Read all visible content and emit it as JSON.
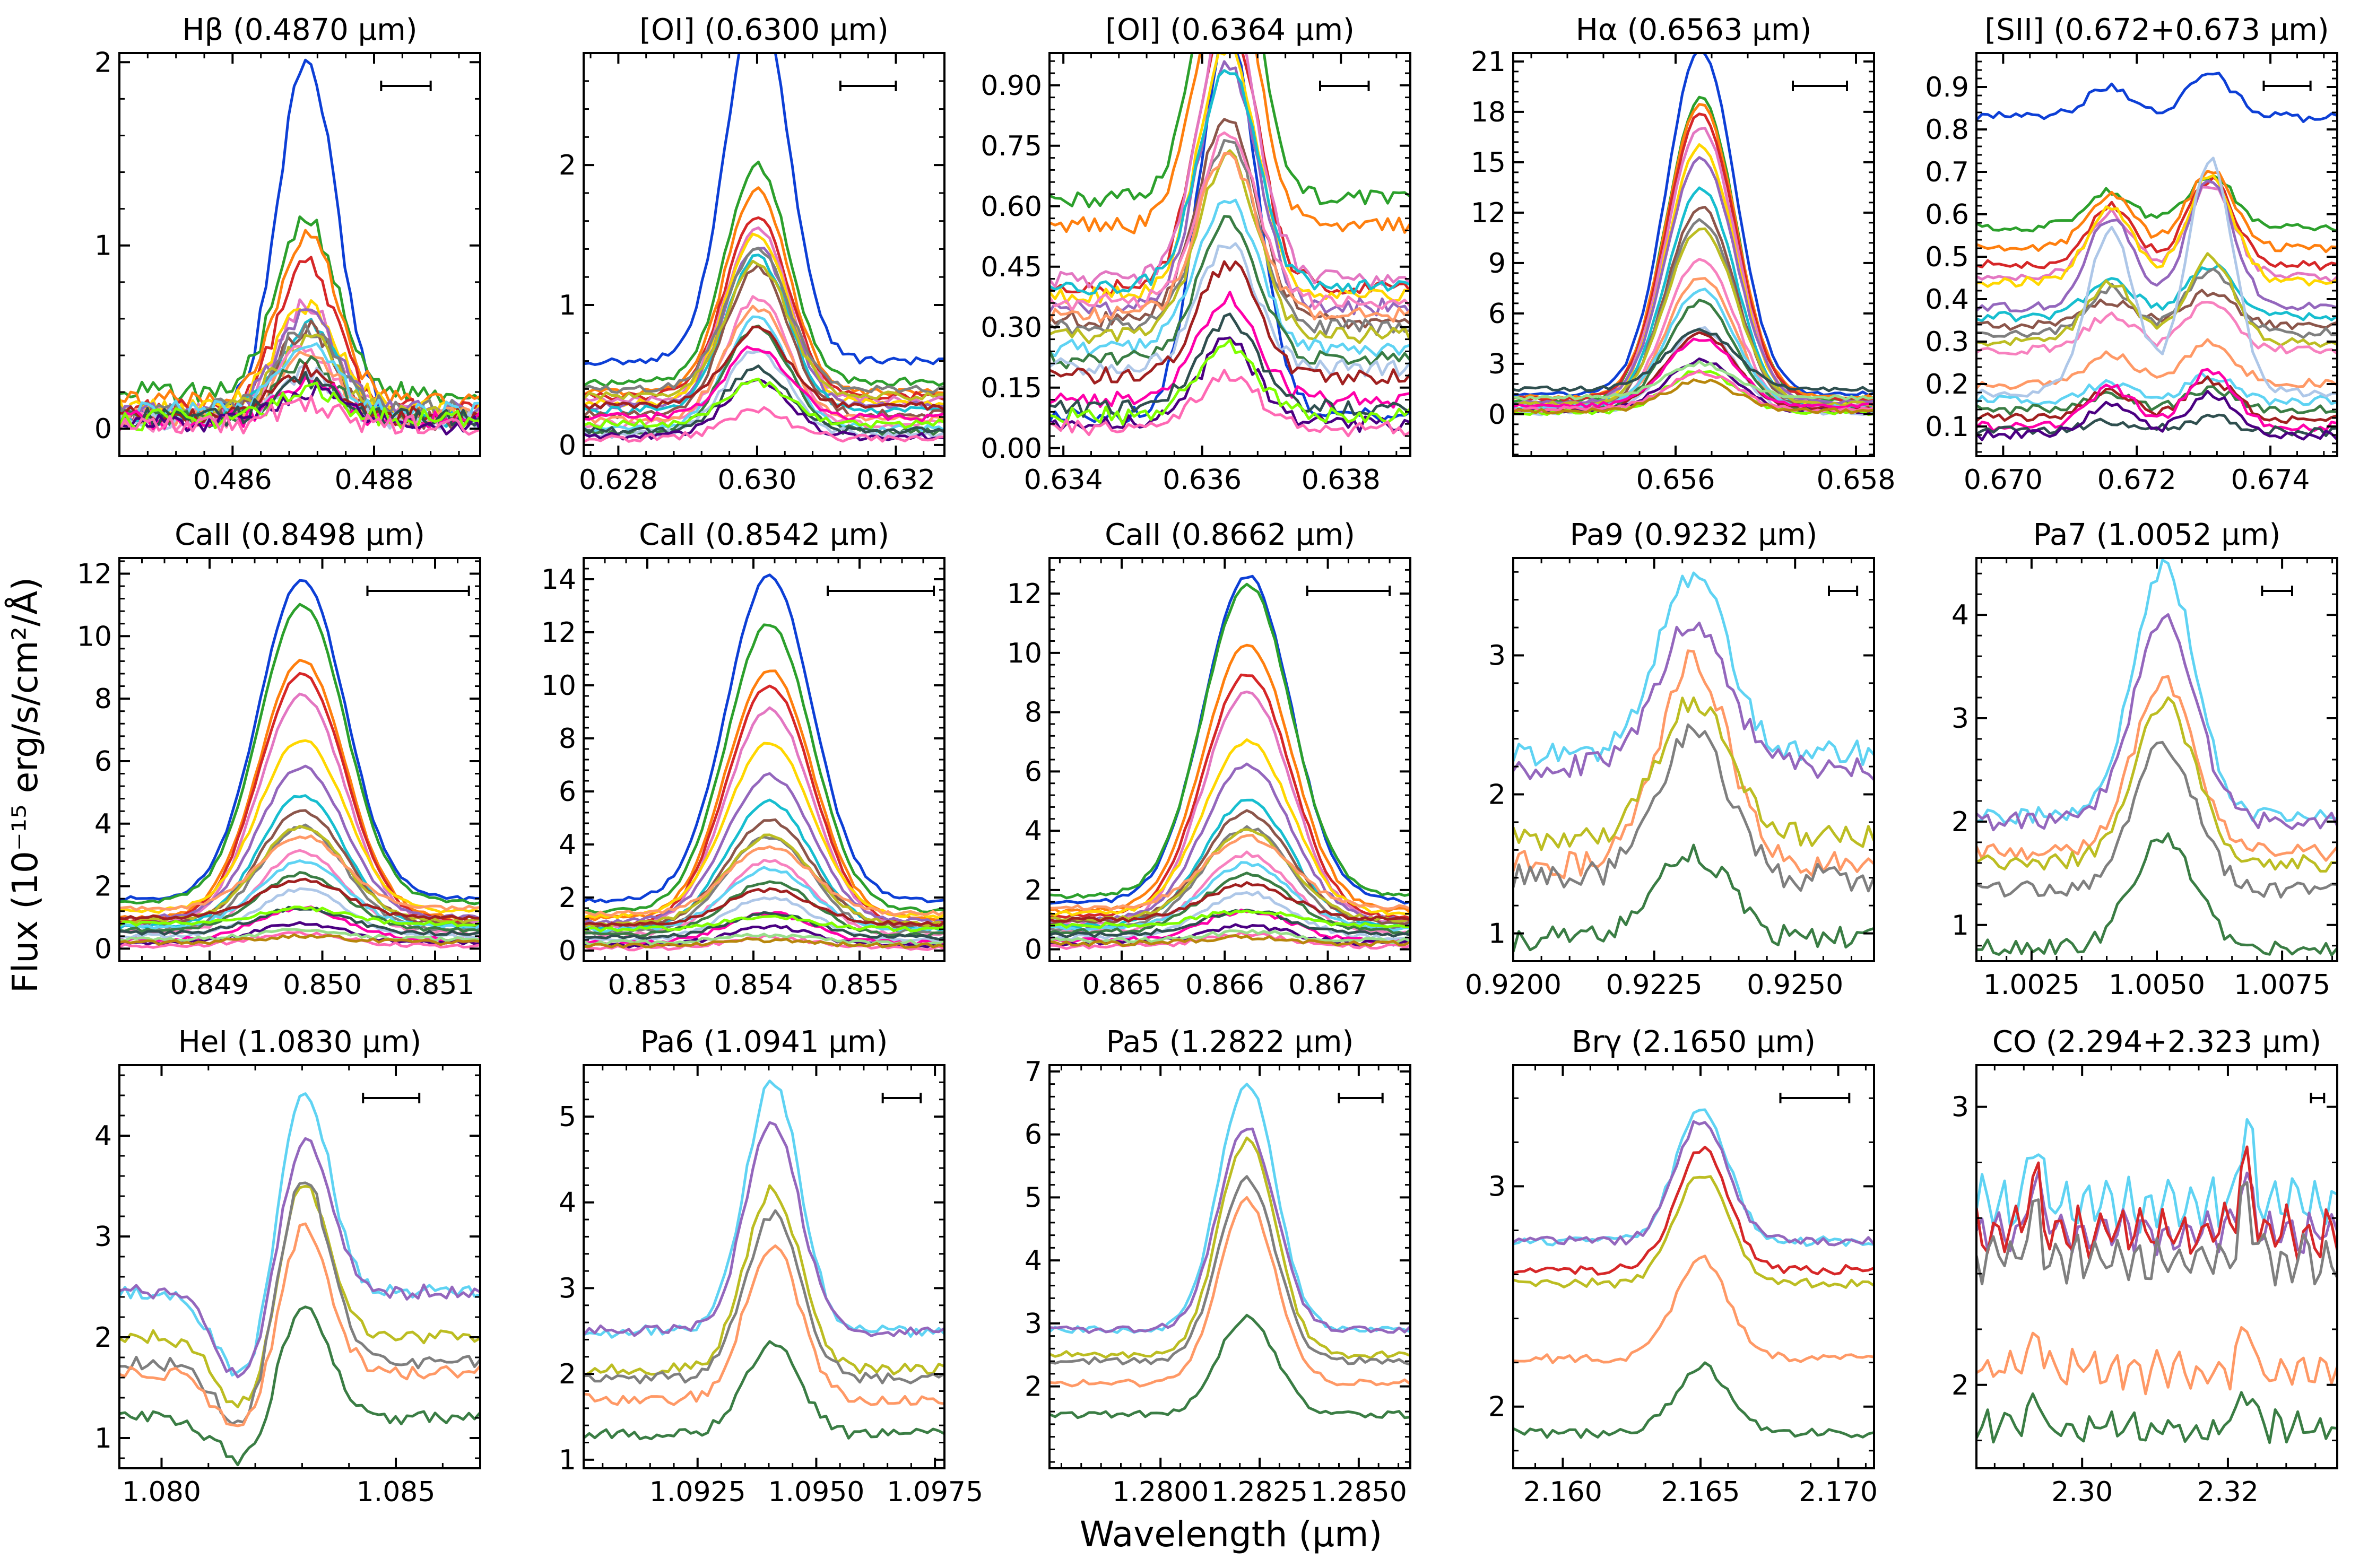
{
  "figure": {
    "ylabel": "Flux (10⁻¹⁵ erg/s/cm²/Å)",
    "xlabel": "Wavelength (μm)"
  },
  "palette": [
    "#0d3fd6",
    "#2ca02c",
    "#ff7f0e",
    "#d62728",
    "#e377c2",
    "#ffd700",
    "#9467bd",
    "#17becf",
    "#8c564b",
    "#7f7f7f",
    "#bcbd22",
    "#f781bf",
    "#ff9966",
    "#5fd3f3",
    "#3a7d44",
    "#aec7e8",
    "#a02020",
    "#ff00aa",
    "#2f4f4f",
    "#4b0082",
    "#7fff00",
    "#ff69b4",
    "#98df8a",
    "#b8860b",
    "#8888ff",
    "#cc3300",
    "#33aa77",
    "#ffaa00",
    "#663399",
    "#00a0a0"
  ],
  "chart_data": [
    {
      "type": "line",
      "title": "Hβ (0.4870 μm)",
      "xlim": [
        0.4844,
        0.4895
      ],
      "ylim": [
        -0.15,
        2.05
      ],
      "xticks": [
        0.486,
        0.488
      ],
      "xticklabels": [
        "0.486",
        "0.488"
      ],
      "yticks": [
        0,
        1,
        2
      ],
      "yticklabels": [
        "0",
        "1",
        "2"
      ],
      "center": 0.48705,
      "sigma": 0.00042,
      "n_series": 22,
      "peaks": [
        1.95,
        0.93,
        0.92,
        0.8,
        0.6,
        0.55,
        0.52,
        0.5,
        0.5,
        0.45,
        0.42,
        0.4,
        0.35,
        0.33,
        0.3,
        0.28,
        0.25,
        0.22,
        0.2,
        0.18,
        0.15,
        0.12
      ],
      "bases": [
        0.05,
        0.2,
        0.15,
        0.1,
        0.08,
        0.12,
        0.1,
        0.06,
        0.05,
        0.1,
        0.08,
        0.04,
        0.06,
        0.1,
        0.05,
        0.03,
        0.07,
        0.04,
        0.06,
        0.03,
        0.05,
        0.02
      ],
      "noise": 0.04,
      "sel": null,
      "scalebar": [
        0.4881,
        0.4888
      ]
    },
    {
      "type": "line",
      "title": "[OI] (0.6300 μm)",
      "xlim": [
        0.6275,
        0.6327
      ],
      "ylim": [
        -0.08,
        2.8
      ],
      "xticks": [
        0.628,
        0.63,
        0.632
      ],
      "xticklabels": [
        "0.628",
        "0.630",
        "0.632"
      ],
      "yticks": [
        0,
        1,
        2
      ],
      "yticklabels": [
        "0",
        "1",
        "2"
      ],
      "center": 0.63,
      "sigma": 0.00045,
      "n_series": 22,
      "peaks": [
        2.6,
        1.55,
        1.45,
        1.3,
        1.25,
        1.2,
        1.15,
        1.1,
        1.05,
        1.0,
        0.95,
        0.9,
        0.8,
        0.78,
        0.75,
        0.6,
        0.55,
        0.5,
        0.45,
        0.4,
        0.3,
        0.2
      ],
      "bases": [
        0.6,
        0.45,
        0.38,
        0.35,
        0.32,
        0.3,
        0.28,
        0.25,
        0.22,
        0.4,
        0.35,
        0.15,
        0.18,
        0.12,
        0.1,
        0.08,
        0.28,
        0.2,
        0.1,
        0.06,
        0.15,
        0.05
      ],
      "noise": 0.02,
      "sel": null,
      "scalebar": [
        0.6312,
        0.632
      ]
    },
    {
      "type": "line",
      "title": "[OI] (0.6364 μm)",
      "xlim": [
        0.6338,
        0.639
      ],
      "ylim": [
        -0.02,
        0.98
      ],
      "xticks": [
        0.634,
        0.636,
        0.638
      ],
      "xticklabels": [
        "0.634",
        "0.636",
        "0.638"
      ],
      "yticks": [
        0,
        0.15,
        0.3,
        0.45,
        0.6,
        0.75,
        0.9
      ],
      "yticklabels": [
        "0.00",
        "0.15",
        "0.30",
        "0.45",
        "0.60",
        "0.75",
        "0.90"
      ],
      "center": 0.63637,
      "sigma": 0.00042,
      "n_series": 22,
      "peaks": [
        0.95,
        0.75,
        0.7,
        0.68,
        0.66,
        0.62,
        0.6,
        0.55,
        0.5,
        0.46,
        0.45,
        0.42,
        0.4,
        0.38,
        0.35,
        0.3,
        0.28,
        0.25,
        0.22,
        0.2,
        0.18,
        0.13
      ],
      "bases": [
        0.08,
        0.62,
        0.55,
        0.4,
        0.42,
        0.38,
        0.35,
        0.4,
        0.32,
        0.3,
        0.28,
        0.36,
        0.33,
        0.25,
        0.22,
        0.2,
        0.18,
        0.12,
        0.1,
        0.06,
        0.08,
        0.05
      ],
      "noise": 0.015,
      "sel": null,
      "scalebar": [
        0.6377,
        0.6384
      ]
    },
    {
      "type": "line",
      "title": "Hα (0.6563 μm)",
      "xlim": [
        0.6542,
        0.6582
      ],
      "ylim": [
        -2.5,
        21.5
      ],
      "xticks": [
        0.656,
        0.658
      ],
      "xticklabels": [
        "0.656",
        "0.658"
      ],
      "yticks": [
        0,
        3,
        6,
        9,
        12,
        15,
        18,
        21
      ],
      "yticklabels": [
        "0",
        "3",
        "6",
        "9",
        "12",
        "15",
        "18",
        "21"
      ],
      "center": 0.65628,
      "sigma": 0.00038,
      "n_series": 24,
      "peaks": [
        20.5,
        18,
        17.5,
        17,
        16.5,
        15.5,
        14.5,
        13,
        12,
        11,
        10.5,
        9,
        8,
        7,
        6.5,
        5,
        4.5,
        4,
        3.5,
        3,
        2.5,
        2.2,
        2,
        1.8
      ],
      "bases": [
        1.2,
        0.8,
        1.0,
        0.9,
        0.6,
        0.5,
        0.7,
        0.4,
        0.3,
        0.5,
        0.6,
        0.3,
        0.2,
        0.4,
        0.2,
        0.1,
        0.3,
        0.5,
        1.5,
        0.2,
        0.1,
        0.3,
        1.0,
        0.2
      ],
      "noise": 0.1,
      "sel": null,
      "scalebar": [
        0.6573,
        0.6579
      ]
    },
    {
      "type": "line",
      "title": "[SII] (0.672+0.673 μm)",
      "xlim": [
        0.6696,
        0.675
      ],
      "ylim": [
        0.03,
        0.98
      ],
      "xticks": [
        0.67,
        0.672,
        0.674
      ],
      "xticklabels": [
        "0.670",
        "0.672",
        "0.674"
      ],
      "yticks": [
        0.1,
        0.2,
        0.3,
        0.4,
        0.5,
        0.6,
        0.7,
        0.8,
        0.9
      ],
      "yticklabels": [
        "0.1",
        "0.2",
        "0.3",
        "0.4",
        "0.5",
        "0.6",
        "0.7",
        "0.8",
        "0.9"
      ],
      "centers": [
        0.67161,
        0.6731
      ],
      "sigma": 0.00035,
      "ratio": 0.7,
      "n_series": 20,
      "peaks": [
        0.1,
        0.12,
        0.18,
        0.2,
        0.22,
        0.25,
        0.3,
        0.12,
        0.08,
        0.15,
        0.2,
        0.12,
        0.1,
        0.06,
        0.05,
        0.55,
        0.09,
        0.13,
        0.03,
        0.1
      ],
      "bases": [
        0.83,
        0.57,
        0.52,
        0.48,
        0.45,
        0.44,
        0.38,
        0.36,
        0.34,
        0.32,
        0.3,
        0.28,
        0.2,
        0.16,
        0.14,
        0.18,
        0.12,
        0.1,
        0.09,
        0.08
      ],
      "noise": 0.008,
      "sel": null,
      "scalebar": [
        0.6739,
        0.6746
      ]
    },
    {
      "type": "line",
      "title": "CaII (0.8498 μm)",
      "xlim": [
        0.8482,
        0.8514
      ],
      "ylim": [
        -0.4,
        12.5
      ],
      "xticks": [
        0.849,
        0.85,
        0.851
      ],
      "xticklabels": [
        "0.849",
        "0.850",
        "0.851"
      ],
      "yticks": [
        0,
        2,
        4,
        6,
        8,
        10,
        12
      ],
      "yticklabels": [
        "0",
        "2",
        "4",
        "6",
        "8",
        "10",
        "12"
      ],
      "center": 0.84982,
      "sigma": 0.00038,
      "n_series": 24,
      "peaks": [
        10.2,
        9.5,
        8.2,
        7.9,
        7.3,
        5.5,
        4.8,
        4.2,
        3.6,
        3.3,
        3,
        2.6,
        2.3,
        2.1,
        1.8,
        1.5,
        1.2,
        1.0,
        0.8,
        0.6,
        0.5,
        0.4,
        0.3,
        0.2
      ],
      "bases": [
        1.6,
        1.5,
        1.0,
        0.9,
        0.8,
        1.2,
        1.0,
        0.7,
        0.8,
        0.6,
        0.9,
        0.5,
        1.3,
        0.7,
        0.6,
        0.4,
        1.0,
        0.3,
        0.5,
        0.2,
        0.8,
        0.1,
        0.3,
        0.2
      ],
      "noise": 0.05,
      "sel": null,
      "scalebar": [
        0.8504,
        0.8513
      ]
    },
    {
      "type": "line",
      "title": "CaII (0.8542 μm)",
      "xlim": [
        0.8524,
        0.8558
      ],
      "ylim": [
        -0.4,
        14.8
      ],
      "xticks": [
        0.853,
        0.854,
        0.855
      ],
      "xticklabels": [
        "0.853",
        "0.854",
        "0.855"
      ],
      "yticks": [
        0,
        2,
        4,
        6,
        8,
        10,
        12,
        14
      ],
      "yticklabels": [
        "0",
        "2",
        "4",
        "6",
        "8",
        "10",
        "12",
        "14"
      ],
      "center": 0.85415,
      "sigma": 0.0004,
      "n_series": 24,
      "peaks": [
        12.2,
        10.8,
        9.4,
        9,
        8.2,
        6.5,
        5.5,
        4.8,
        4,
        3.6,
        3.3,
        2.8,
        2.5,
        2.3,
        2,
        1.6,
        1.3,
        1.1,
        0.9,
        0.7,
        0.5,
        0.4,
        0.3,
        0.2
      ],
      "bases": [
        1.9,
        1.5,
        1.2,
        1.0,
        0.9,
        1.3,
        1.1,
        0.8,
        0.9,
        0.7,
        1.0,
        0.6,
        1.4,
        0.8,
        0.6,
        0.4,
        1.0,
        0.3,
        0.5,
        0.2,
        0.8,
        0.1,
        0.3,
        0.2
      ],
      "noise": 0.06,
      "sel": null,
      "scalebar": [
        0.8547,
        0.8557
      ]
    },
    {
      "type": "line",
      "title": "CaII (0.8662 μm)",
      "xlim": [
        0.8643,
        0.8678
      ],
      "ylim": [
        -0.4,
        13.2
      ],
      "xticks": [
        0.865,
        0.866,
        0.867
      ],
      "xticklabels": [
        "0.865",
        "0.866",
        "0.867"
      ],
      "yticks": [
        0,
        2,
        4,
        6,
        8,
        10,
        12
      ],
      "yticklabels": [
        "0",
        "2",
        "4",
        "6",
        "8",
        "10",
        "12"
      ],
      "center": 0.86622,
      "sigma": 0.00042,
      "n_series": 24,
      "peaks": [
        11.0,
        10.5,
        9.0,
        8.2,
        7.8,
        5.8,
        5.2,
        4.2,
        3.7,
        3.4,
        3.0,
        2.6,
        2.4,
        2.2,
        1.9,
        1.5,
        1.2,
        1.0,
        0.8,
        0.6,
        0.5,
        0.4,
        0.3,
        0.2
      ],
      "bases": [
        1.6,
        1.8,
        1.3,
        1.1,
        0.9,
        1.2,
        1.0,
        0.8,
        0.9,
        0.7,
        1.0,
        0.6,
        1.4,
        0.7,
        0.6,
        0.4,
        1.0,
        0.3,
        0.5,
        0.2,
        0.8,
        0.1,
        0.3,
        0.2
      ],
      "noise": 0.06,
      "sel": null,
      "scalebar": [
        0.8668,
        0.8676
      ]
    },
    {
      "type": "line",
      "title": "Pa9 (0.9232 μm)",
      "xlim": [
        0.92,
        0.9264
      ],
      "ylim": [
        0.8,
        3.7
      ],
      "xticks": [
        0.92,
        0.9225,
        0.925
      ],
      "xticklabels": [
        "0.9200",
        "0.9225",
        "0.9250"
      ],
      "yticks": [
        1,
        2,
        3
      ],
      "yticklabels": [
        "1",
        "2",
        "3"
      ],
      "center": 0.9232,
      "sigma": 0.00062,
      "n_series": 6,
      "peaks": [
        1.25,
        1.05,
        1.45,
        0.95,
        1.05,
        0.62
      ],
      "bases": [
        2.3,
        2.2,
        1.5,
        1.7,
        1.4,
        0.97
      ],
      "noise": 0.07,
      "sel": [
        13,
        6,
        12,
        10,
        9,
        14
      ],
      "scalebar": [
        0.9256,
        0.9261
      ]
    },
    {
      "type": "line",
      "title": "Pa7 (1.0052 μm)",
      "xlim": [
        1.0014,
        1.0086
      ],
      "ylim": [
        0.65,
        4.55
      ],
      "xticks": [
        1.0025,
        1.005,
        1.0075
      ],
      "xticklabels": [
        "1.0025",
        "1.0050",
        "1.0075"
      ],
      "yticks": [
        1,
        2,
        3,
        4
      ],
      "yticklabels": [
        "1",
        "2",
        "3",
        "4"
      ],
      "center": 1.00515,
      "sigma": 0.00062,
      "n_series": 6,
      "peaks": [
        2.4,
        1.95,
        1.65,
        1.55,
        1.4,
        1.05
      ],
      "bases": [
        2.05,
        2.0,
        1.7,
        1.6,
        1.35,
        0.78
      ],
      "noise": 0.06,
      "sel": [
        13,
        6,
        12,
        10,
        9,
        14
      ],
      "scalebar": [
        1.0071,
        1.0077
      ]
    },
    {
      "type": "line",
      "title": "HeI (1.0830 μm)",
      "xlim": [
        1.0791,
        1.0868
      ],
      "ylim": [
        0.7,
        4.7
      ],
      "xticks": [
        1.08,
        1.085
      ],
      "xticklabels": [
        "1.080",
        "1.085"
      ],
      "yticks": [
        1,
        2,
        3,
        4
      ],
      "yticklabels": [
        "1",
        "2",
        "3",
        "4"
      ],
      "center": 1.08302,
      "sigma": 0.00055,
      "n_series": 6,
      "peaks": [
        2.1,
        1.6,
        1.6,
        1.9,
        1.5,
        1.15
      ],
      "bases": [
        2.45,
        2.45,
        2.0,
        1.75,
        1.65,
        1.2
      ],
      "noise": 0.05,
      "absorb": {
        "center": 1.0818,
        "sigma": 0.0006,
        "depth": 0.85
      },
      "sel": [
        13,
        6,
        10,
        9,
        12,
        14
      ],
      "scalebar": [
        1.0843,
        1.0855
      ]
    },
    {
      "type": "line",
      "title": "Pa6 (1.0941 μm)",
      "xlim": [
        1.0901,
        1.0977
      ],
      "ylim": [
        0.9,
        5.6
      ],
      "xticks": [
        1.0925,
        1.095,
        1.0975
      ],
      "xticklabels": [
        "1.0925",
        "1.0950",
        "1.0975"
      ],
      "yticks": [
        1,
        2,
        3,
        4,
        5
      ],
      "yticklabels": [
        "1",
        "2",
        "3",
        "4",
        "5"
      ],
      "center": 1.09408,
      "sigma": 0.00058,
      "n_series": 6,
      "peaks": [
        2.9,
        2.4,
        2.1,
        1.9,
        1.8,
        1.05
      ],
      "bases": [
        2.5,
        2.5,
        2.05,
        1.95,
        1.7,
        1.3
      ],
      "noise": 0.05,
      "sel": [
        13,
        6,
        10,
        9,
        12,
        14
      ],
      "scalebar": [
        1.0964,
        1.0972
      ]
    },
    {
      "type": "line",
      "title": "Pa5 (1.2822 μm)",
      "xlim": [
        1.2772,
        1.2863
      ],
      "ylim": [
        0.7,
        7.1
      ],
      "xticks": [
        1.28,
        1.2825,
        1.285
      ],
      "xticklabels": [
        "1.2800",
        "1.2825",
        "1.2850"
      ],
      "yticks": [
        2,
        3,
        4,
        5,
        6,
        7
      ],
      "yticklabels": [
        "2",
        "3",
        "4",
        "5",
        "6",
        "7"
      ],
      "center": 1.28218,
      "sigma": 0.00072,
      "n_series": 6,
      "peaks": [
        3.9,
        3.2,
        3.4,
        2.9,
        2.9,
        1.55
      ],
      "bases": [
        2.9,
        2.9,
        2.5,
        2.4,
        2.05,
        1.55
      ],
      "noise": 0.04,
      "sel": [
        13,
        6,
        10,
        9,
        12,
        14
      ],
      "scalebar": [
        1.2845,
        1.2856
      ]
    },
    {
      "type": "line",
      "title": "Brγ (2.1650 μm)",
      "xlim": [
        2.1582,
        2.1713
      ],
      "ylim": [
        1.72,
        3.55
      ],
      "xticks": [
        2.16,
        2.165,
        2.17
      ],
      "xticklabels": [
        "2.160",
        "2.165",
        "2.170"
      ],
      "yticks": [
        2,
        3
      ],
      "yticklabels": [
        "2",
        "3"
      ],
      "center": 2.16505,
      "sigma": 0.00095,
      "n_series": 6,
      "peaks": [
        0.6,
        0.55,
        0.55,
        0.5,
        0.45,
        0.3
      ],
      "bases": [
        2.75,
        2.75,
        2.62,
        2.56,
        2.22,
        1.88
      ],
      "noise": 0.015,
      "sel": [
        13,
        6,
        3,
        10,
        12,
        14
      ],
      "scalebar": [
        2.1679,
        2.1704
      ]
    },
    {
      "type": "line",
      "title": "CO (2.294+2.323 μm)",
      "xlim": [
        2.2855,
        2.335
      ],
      "ylim": [
        1.7,
        3.15
      ],
      "xticks": [
        2.3,
        2.32
      ],
      "xticklabels": [
        "2.30",
        "2.32"
      ],
      "yticks": [
        2,
        3
      ],
      "yticklabels": [
        "2",
        "3"
      ],
      "co_peaks": [
        2.2935,
        2.3225
      ],
      "n_series": 6,
      "peaks": [
        0.5,
        0.35,
        0.45,
        0.4,
        0.3,
        0.2
      ],
      "bases": [
        2.65,
        2.55,
        2.55,
        2.45,
        2.05,
        1.85
      ],
      "noise": 0.03,
      "sel": [
        13,
        6,
        3,
        9,
        12,
        14
      ],
      "scalebar": [
        2.3314,
        2.3332
      ]
    }
  ]
}
